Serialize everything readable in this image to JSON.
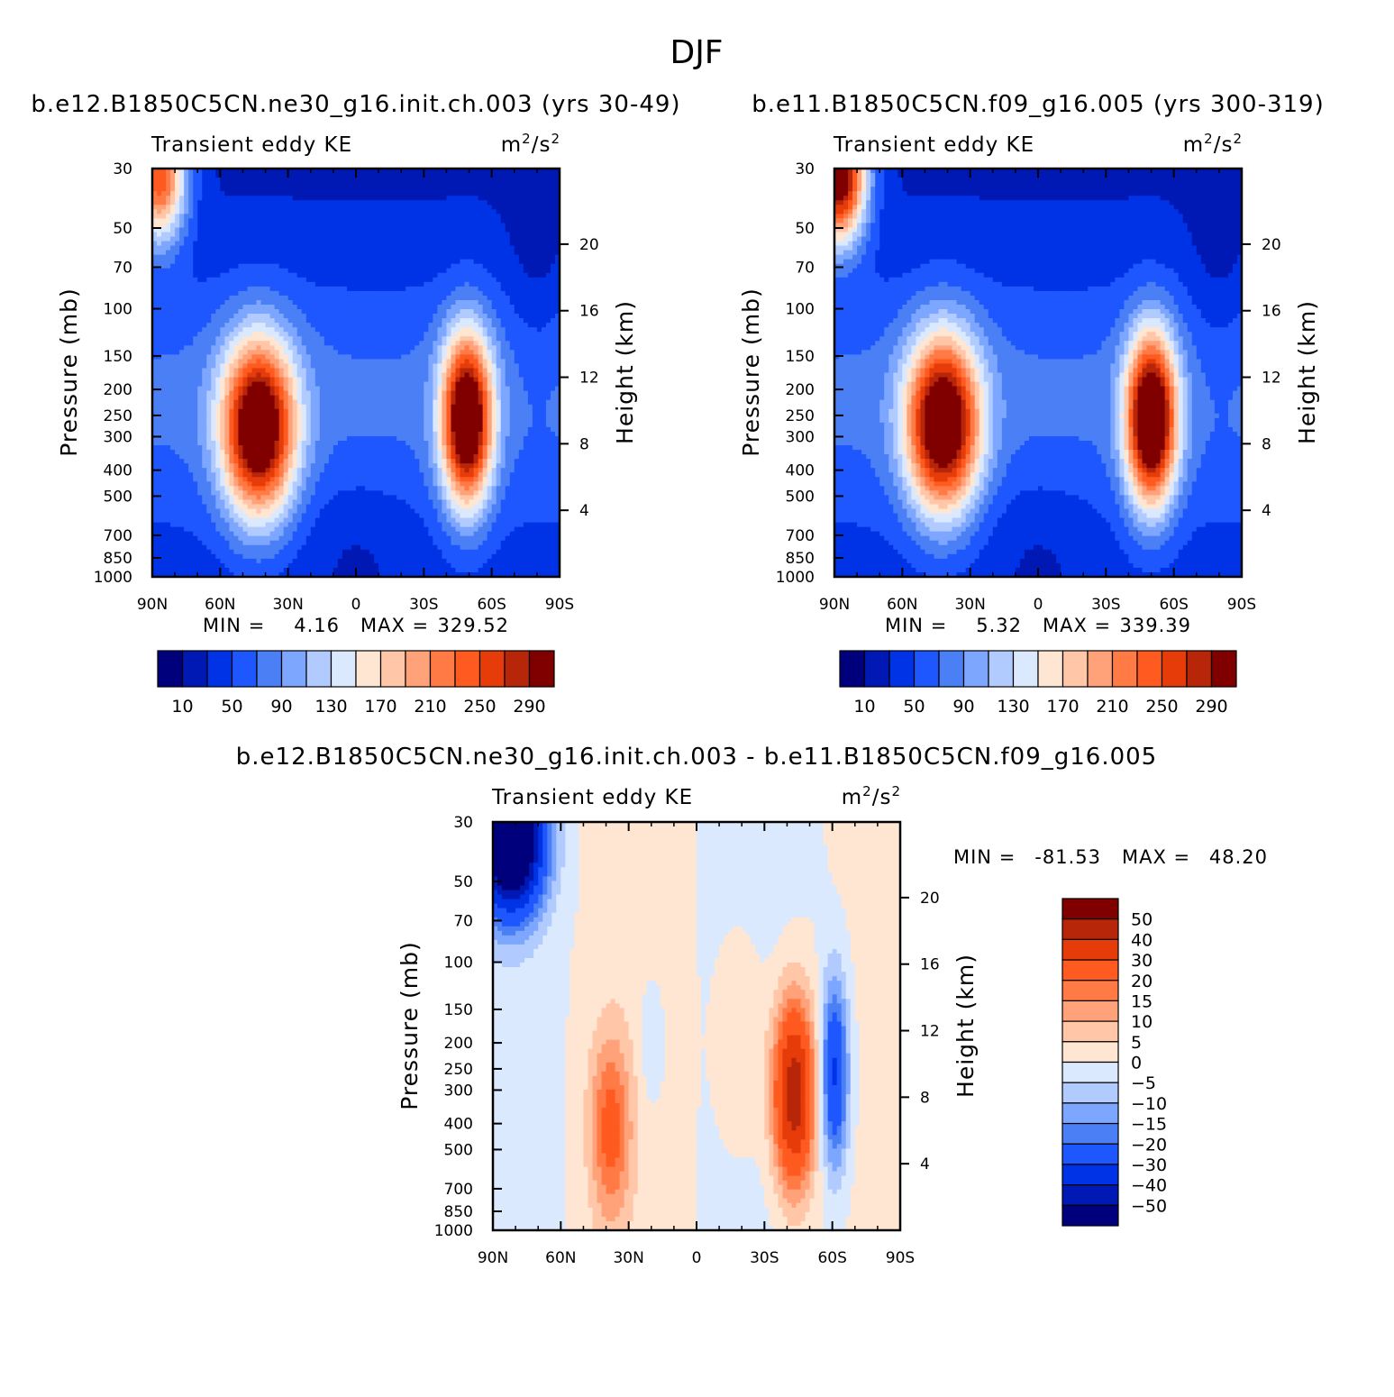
{
  "figure_title": "DJF",
  "chart_data": [
    {
      "type": "heatmap",
      "panel": "top-left",
      "title": "b.e12.B1850C5CN.ne30_g16.init.ch.003 (yrs 30-49)",
      "left_label": "Transient eddy KE",
      "units_base": "m",
      "units_exp1": "2",
      "units_mid": "/s",
      "units_exp2": "2",
      "ylabel": "Pressure (mb)",
      "ylabel_right": "Height (km)",
      "x_ticks": [
        "90N",
        "60N",
        "30N",
        "0",
        "30S",
        "60S",
        "90S"
      ],
      "x_values": [
        90,
        60,
        30,
        0,
        -30,
        -60,
        -90
      ],
      "y_ticks": [
        "30",
        "50",
        "70",
        "100",
        "150",
        "200",
        "250",
        "300",
        "400",
        "500",
        "700",
        "850",
        "1000"
      ],
      "y_values": [
        30,
        50,
        70,
        100,
        150,
        200,
        250,
        300,
        400,
        500,
        700,
        850,
        1000
      ],
      "ylim": [
        1000,
        30
      ],
      "y_scale": "log",
      "height_ticks": [
        "20",
        "16",
        "12",
        "8",
        "4"
      ],
      "height_values": [
        20,
        16,
        12,
        8,
        4
      ],
      "stats": {
        "min_label": "MIN =",
        "min_value": "4.16",
        "max_label": "MAX =",
        "max_value": "329.52"
      },
      "colorbar": {
        "orientation": "horizontal",
        "labels": [
          "10",
          "50",
          "90",
          "130",
          "170",
          "210",
          "250",
          "290"
        ],
        "colors": [
          "#00007d",
          "#0019b4",
          "#0033e6",
          "#1f57ff",
          "#4a7ff5",
          "#7da6ff",
          "#b1cbff",
          "#dbe9ff",
          "#ffe6d2",
          "#ffc7a8",
          "#ffa27a",
          "#ff7a45",
          "#ff5a1f",
          "#e63c0a",
          "#b8260a",
          "#800000"
        ]
      },
      "features": [
        {
          "lat": 43,
          "plev": 280,
          "value": 320
        },
        {
          "lat": -49,
          "plev": 260,
          "value": 329
        },
        {
          "lat": 87,
          "plev": 32,
          "value": 250
        }
      ]
    },
    {
      "type": "heatmap",
      "panel": "top-right",
      "title": "b.e11.B1850C5CN.f09_g16.005 (yrs 300-319)",
      "left_label": "Transient eddy KE",
      "units_base": "m",
      "units_exp1": "2",
      "units_mid": "/s",
      "units_exp2": "2",
      "ylabel": "Pressure (mb)",
      "ylabel_right": "Height (km)",
      "x_ticks": [
        "90N",
        "60N",
        "30N",
        "0",
        "30S",
        "60S",
        "90S"
      ],
      "x_values": [
        90,
        60,
        30,
        0,
        -30,
        -60,
        -90
      ],
      "y_ticks": [
        "30",
        "50",
        "70",
        "100",
        "150",
        "200",
        "250",
        "300",
        "400",
        "500",
        "700",
        "850",
        "1000"
      ],
      "y_values": [
        30,
        50,
        70,
        100,
        150,
        200,
        250,
        300,
        400,
        500,
        700,
        850,
        1000
      ],
      "ylim": [
        1000,
        30
      ],
      "y_scale": "log",
      "height_ticks": [
        "20",
        "16",
        "12",
        "8",
        "4"
      ],
      "height_values": [
        20,
        16,
        12,
        8,
        4
      ],
      "stats": {
        "min_label": "MIN =",
        "min_value": "5.32",
        "max_label": "MAX =",
        "max_value": "339.39"
      },
      "colorbar": {
        "orientation": "horizontal",
        "labels": [
          "10",
          "50",
          "90",
          "130",
          "170",
          "210",
          "250",
          "290"
        ],
        "colors": [
          "#00007d",
          "#0019b4",
          "#0033e6",
          "#1f57ff",
          "#4a7ff5",
          "#7da6ff",
          "#b1cbff",
          "#dbe9ff",
          "#ffe6d2",
          "#ffc7a8",
          "#ffa27a",
          "#ff7a45",
          "#ff5a1f",
          "#e63c0a",
          "#b8260a",
          "#800000"
        ]
      },
      "features": [
        {
          "lat": 42,
          "plev": 270,
          "value": 320
        },
        {
          "lat": -50,
          "plev": 260,
          "value": 339
        },
        {
          "lat": 88,
          "plev": 32,
          "value": 330
        }
      ]
    },
    {
      "type": "heatmap",
      "panel": "bottom",
      "title": "b.e12.B1850C5CN.ne30_g16.init.ch.003 - b.e11.B1850C5CN.f09_g16.005",
      "left_label": "Transient eddy KE",
      "units_base": "m",
      "units_exp1": "2",
      "units_mid": "/s",
      "units_exp2": "2",
      "ylabel": "Pressure (mb)",
      "ylabel_right": "Height (km)",
      "x_ticks": [
        "90N",
        "60N",
        "30N",
        "0",
        "30S",
        "60S",
        "90S"
      ],
      "x_values": [
        90,
        60,
        30,
        0,
        -30,
        -60,
        -90
      ],
      "y_ticks": [
        "30",
        "50",
        "70",
        "100",
        "150",
        "200",
        "250",
        "300",
        "400",
        "500",
        "700",
        "850",
        "1000"
      ],
      "y_values": [
        30,
        50,
        70,
        100,
        150,
        200,
        250,
        300,
        400,
        500,
        700,
        850,
        1000
      ],
      "ylim": [
        1000,
        30
      ],
      "y_scale": "log",
      "height_ticks": [
        "20",
        "16",
        "12",
        "8",
        "4"
      ],
      "height_values": [
        20,
        16,
        12,
        8,
        4
      ],
      "stats": {
        "min_label": "MIN =",
        "min_value": "-81.53",
        "max_label": "MAX =",
        "max_value": "48.20"
      },
      "colorbar": {
        "orientation": "vertical",
        "labels": [
          "50",
          "40",
          "30",
          "20",
          "15",
          "10",
          "5",
          "0",
          "-5",
          "-10",
          "-15",
          "-20",
          "-30",
          "-40",
          "-50"
        ],
        "colors": [
          "#800000",
          "#b8260a",
          "#e63c0a",
          "#ff5a1f",
          "#ff7a45",
          "#ffa27a",
          "#ffc7a8",
          "#ffe6d2",
          "#dbe9ff",
          "#b1cbff",
          "#7da6ff",
          "#4a7ff5",
          "#1f57ff",
          "#0033e6",
          "#0019b4",
          "#00007d"
        ]
      },
      "features": [
        {
          "lat": -43,
          "plev": 310,
          "value": 48
        },
        {
          "lat": 38,
          "plev": 420,
          "value": 22
        },
        {
          "lat": -61,
          "plev": 260,
          "value": -32
        },
        {
          "lat": 82,
          "plev": 35,
          "value": -81
        }
      ]
    }
  ]
}
